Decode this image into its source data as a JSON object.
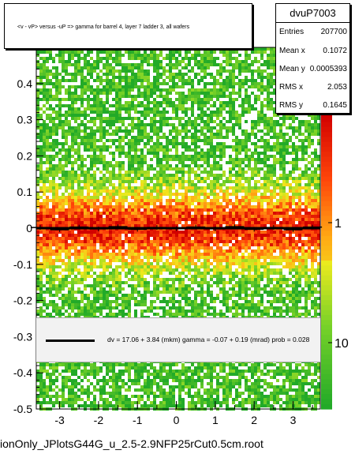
{
  "chart_data": {
    "type": "heatmap",
    "title": "<v - vP>       versus -uP =>  gamma for barrel 4, layer 7 ladder 3, all wafers",
    "xlabel": "",
    "ylabel": "",
    "xlim": [
      -3.6,
      3.7
    ],
    "ylim": [
      -0.5,
      0.5
    ],
    "x_ticks": [
      -3,
      -2,
      -1,
      0,
      1,
      2,
      3
    ],
    "y_ticks": [
      -0.5,
      -0.4,
      -0.3,
      -0.2,
      -0.1,
      0,
      0.1,
      0.2,
      0.3,
      0.4
    ],
    "colorbar_ticks": [
      "1",
      "10"
    ],
    "colors": {
      "low": "#22cc22",
      "mid": "#ffee00",
      "high": "#ff2200",
      "peak": "#cc0000"
    },
    "profile": {
      "x": [
        -3.5,
        -3.0,
        -2.5,
        -2.0,
        -1.5,
        -1.0,
        -0.5,
        0.0,
        0.5,
        1.0,
        1.5,
        2.0,
        2.5,
        3.0,
        3.5
      ],
      "y": [
        0.002,
        -0.004,
        0.003,
        -0.002,
        0.004,
        -0.003,
        0.002,
        -0.001,
        0.003,
        -0.002,
        0.004,
        -0.003,
        0.002,
        -0.004,
        0.003
      ]
    },
    "fit_line": {
      "slope": 0.0,
      "intercept": 0.0
    }
  },
  "stats": {
    "name": "dvuP7003",
    "rows": [
      {
        "label": "Entries",
        "value": "207700"
      },
      {
        "label": "Mean x",
        "value": "0.1072"
      },
      {
        "label": "Mean y",
        "value": "0.0005393"
      },
      {
        "label": "RMS x",
        "value": "2.053"
      },
      {
        "label": "RMS y",
        "value": "0.1645"
      }
    ]
  },
  "fit_text": "dv =    17.06 +   3.84 (mkm) gamma =    -0.07 +  0.19 (mrad) prob = 0.028",
  "file_label": "ionOnly_JPlotsG44G_u_2.5-2.9NFP25rCut0.5cm.root"
}
